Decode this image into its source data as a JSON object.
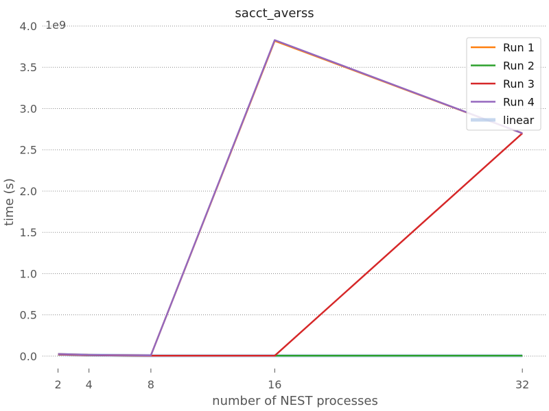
{
  "chart_data": {
    "type": "line",
    "title": "sacct_averss",
    "xlabel": "number of NEST processes",
    "ylabel": "time (s)",
    "y_offset_label": "1e9",
    "x_ticks": [
      2,
      4,
      8,
      16,
      32
    ],
    "y_ticks": [
      0.0,
      0.5,
      1.0,
      1.5,
      2.0,
      2.5,
      3.0,
      3.5,
      4.0
    ],
    "y_tick_labels": [
      "0.0",
      "0.5",
      "1.0",
      "1.5",
      "2.0",
      "2.5",
      "3.0",
      "3.5",
      "4.0"
    ],
    "xlim": [
      1.0,
      33.5
    ],
    "ylim": [
      -0.15,
      4.0
    ],
    "grid": "horizontal dotted",
    "legend_position": "top-right",
    "series": [
      {
        "name": "Run 1",
        "color": "#ff7f0e",
        "x": [
          2,
          4,
          8,
          16,
          32
        ],
        "y": [
          0.025,
          0.015,
          0.01,
          3.82,
          2.7
        ]
      },
      {
        "name": "Run 2",
        "color": "#2ca02c",
        "x": [
          2,
          4,
          8,
          16,
          32
        ],
        "y": [
          0.02,
          0.012,
          0.005,
          0.005,
          0.005
        ]
      },
      {
        "name": "Run 3",
        "color": "#d62728",
        "x": [
          2,
          4,
          8,
          16,
          32
        ],
        "y": [
          0.02,
          0.012,
          0.005,
          0.005,
          2.7
        ]
      },
      {
        "name": "Run 4",
        "color": "#9467bd",
        "x": [
          2,
          4,
          8,
          16,
          32
        ],
        "y": [
          0.025,
          0.015,
          0.01,
          3.83,
          2.7
        ]
      },
      {
        "name": "linear",
        "color": "#aec7e8",
        "x": [
          2,
          4,
          8,
          16,
          32
        ],
        "y": [
          0.02,
          0.012,
          0.005,
          0.005,
          0.005
        ]
      }
    ]
  }
}
